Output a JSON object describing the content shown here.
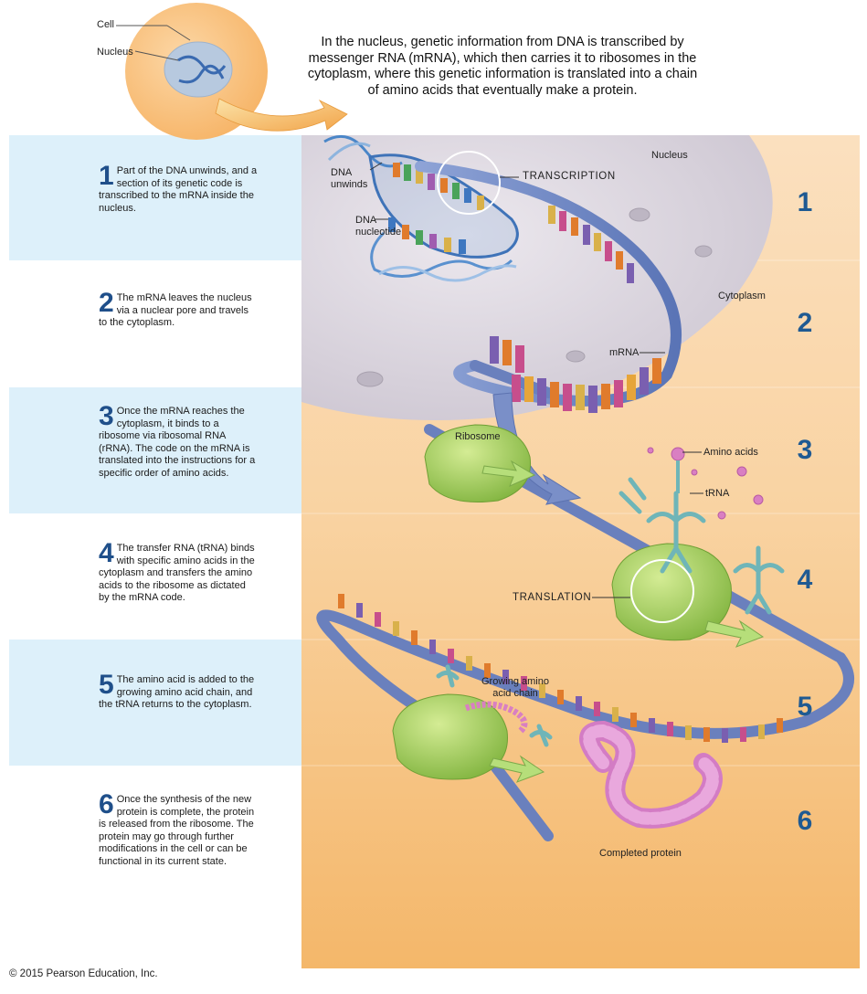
{
  "intro": "In the nucleus, genetic information from DNA is transcribed by messenger RNA (mRNA), which then carries it to ribosomes in the cytoplasm, where this genetic information is translated into a chain of amino acids that eventually make a protein.",
  "labels": {
    "cell": "Cell",
    "nucleus_top": "Nucleus",
    "nucleus_region": "Nucleus",
    "dna_unwinds": "DNA\nunwinds",
    "dna_nucleotide": "DNA\nnucleotide",
    "transcription": "TRANSCRIPTION",
    "cytoplasm": "Cytoplasm",
    "mrna": "mRNA",
    "ribosome": "Ribosome",
    "amino_acids": "Amino acids",
    "trna": "tRNA",
    "translation": "TRANSLATION",
    "growing_chain": "Growing amino\nacid chain",
    "completed_protein": "Completed protein"
  },
  "steps": [
    {
      "num": "1",
      "text": "Part of the DNA unwinds, and a section of its genetic code is transcribed to the mRNA inside the nucleus."
    },
    {
      "num": "2",
      "text": "The mRNA leaves the nucleus via a nuclear pore and travels to the cytoplasm."
    },
    {
      "num": "3",
      "text": "Once the mRNA reaches the cytoplasm, it binds to a ribosome via ribosomal RNA (rRNA). The code on the mRNA is translated into the instructions for a specific order of amino acids."
    },
    {
      "num": "4",
      "text": "The transfer RNA (tRNA) binds with specific amino acids in the cytoplasm and transfers the amino acids to the ribosome as dictated by the mRNA code."
    },
    {
      "num": "5",
      "text": "The amino acid is added to the growing amino acid chain, and the tRNA returns to the cytoplasm."
    },
    {
      "num": "6",
      "text": "Once the synthesis of the new protein is complete, the protein is released from the ribosome. The protein may go through further modifications in the cell or can be functional in its current state."
    }
  ],
  "footer": "© 2015 Pearson Education, Inc.",
  "colors": {
    "step_band_blue": "#ddf0fa",
    "step_number": "#1f4f8a",
    "cytoplasm_bg": "#f7c788",
    "nucleus_gray": "#ddd8e0",
    "ribosome_green": "#9cca52",
    "protein_pink": "#d87ec7",
    "mrna_blue": "#6a85c4"
  }
}
